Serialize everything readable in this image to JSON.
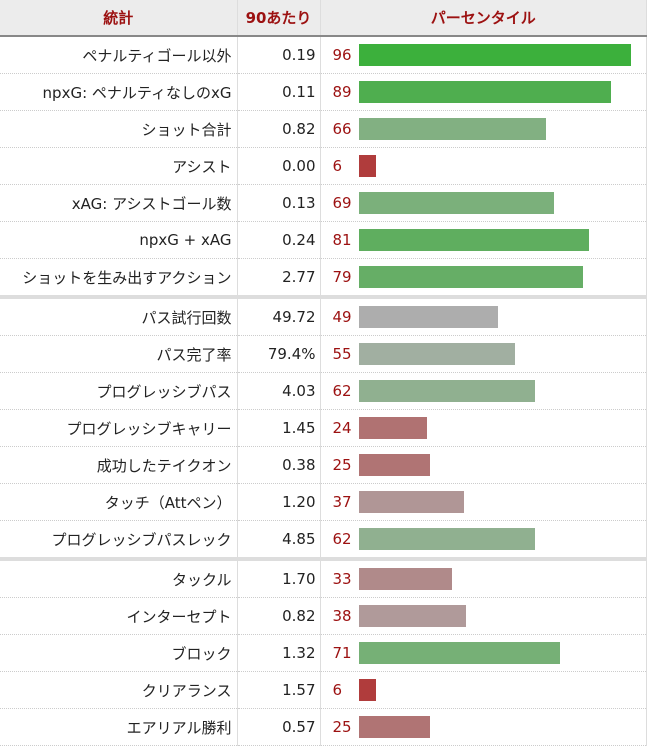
{
  "header": {
    "stat": "統計",
    "per90": "90あたり",
    "percentile": "パーセンタイル"
  },
  "rows": [
    {
      "stat": "ペナルティゴール以外",
      "per90": "0.19",
      "pct": 96,
      "color": "#3cb03c",
      "section": 1
    },
    {
      "stat": "npxG: ペナルティなしのxG",
      "per90": "0.11",
      "pct": 89,
      "color": "#4fae4f",
      "section": 1
    },
    {
      "stat": "ショット合計",
      "per90": "0.82",
      "pct": 66,
      "color": "#82b082",
      "section": 1
    },
    {
      "stat": "アシスト",
      "per90": "0.00",
      "pct": 6,
      "color": "#b03c3c",
      "section": 1
    },
    {
      "stat": "xAG: アシストゴール数",
      "per90": "0.13",
      "pct": 69,
      "color": "#7bb07b",
      "section": 1
    },
    {
      "stat": "npxG + xAG",
      "per90": "0.24",
      "pct": 81,
      "color": "#5fae5f",
      "section": 1
    },
    {
      "stat": "ショットを生み出すアクション",
      "per90": "2.77",
      "pct": 79,
      "color": "#66ae66",
      "section": 1
    },
    {
      "stat": "パス試行回数",
      "per90": "49.72",
      "pct": 49,
      "color": "#adadad",
      "section": 2
    },
    {
      "stat": "パス完了率",
      "per90": "79.4%",
      "pct": 55,
      "color": "#a1afa1",
      "section": 2
    },
    {
      "stat": "プログレッシブパス",
      "per90": "4.03",
      "pct": 62,
      "color": "#90b090",
      "section": 2
    },
    {
      "stat": "プログレッシブキャリー",
      "per90": "1.45",
      "pct": 24,
      "color": "#b07272",
      "section": 2
    },
    {
      "stat": "成功したテイクオン",
      "per90": "0.38",
      "pct": 25,
      "color": "#b07474",
      "section": 2
    },
    {
      "stat": "タッチ（Attペン）",
      "per90": "1.20",
      "pct": 37,
      "color": "#b09696",
      "section": 2
    },
    {
      "stat": "プログレッシブパスレック",
      "per90": "4.85",
      "pct": 62,
      "color": "#90b090",
      "section": 2
    },
    {
      "stat": "タックル",
      "per90": "1.70",
      "pct": 33,
      "color": "#b08a8a",
      "section": 3
    },
    {
      "stat": "インターセプト",
      "per90": "0.82",
      "pct": 38,
      "color": "#b09a9a",
      "section": 3
    },
    {
      "stat": "ブロック",
      "per90": "1.32",
      "pct": 71,
      "color": "#76b076",
      "section": 3
    },
    {
      "stat": "クリアランス",
      "per90": "1.57",
      "pct": 6,
      "color": "#b03c3c",
      "section": 3
    },
    {
      "stat": "エアリアル勝利",
      "per90": "0.57",
      "pct": 25,
      "color": "#b07474",
      "section": 3
    }
  ]
}
